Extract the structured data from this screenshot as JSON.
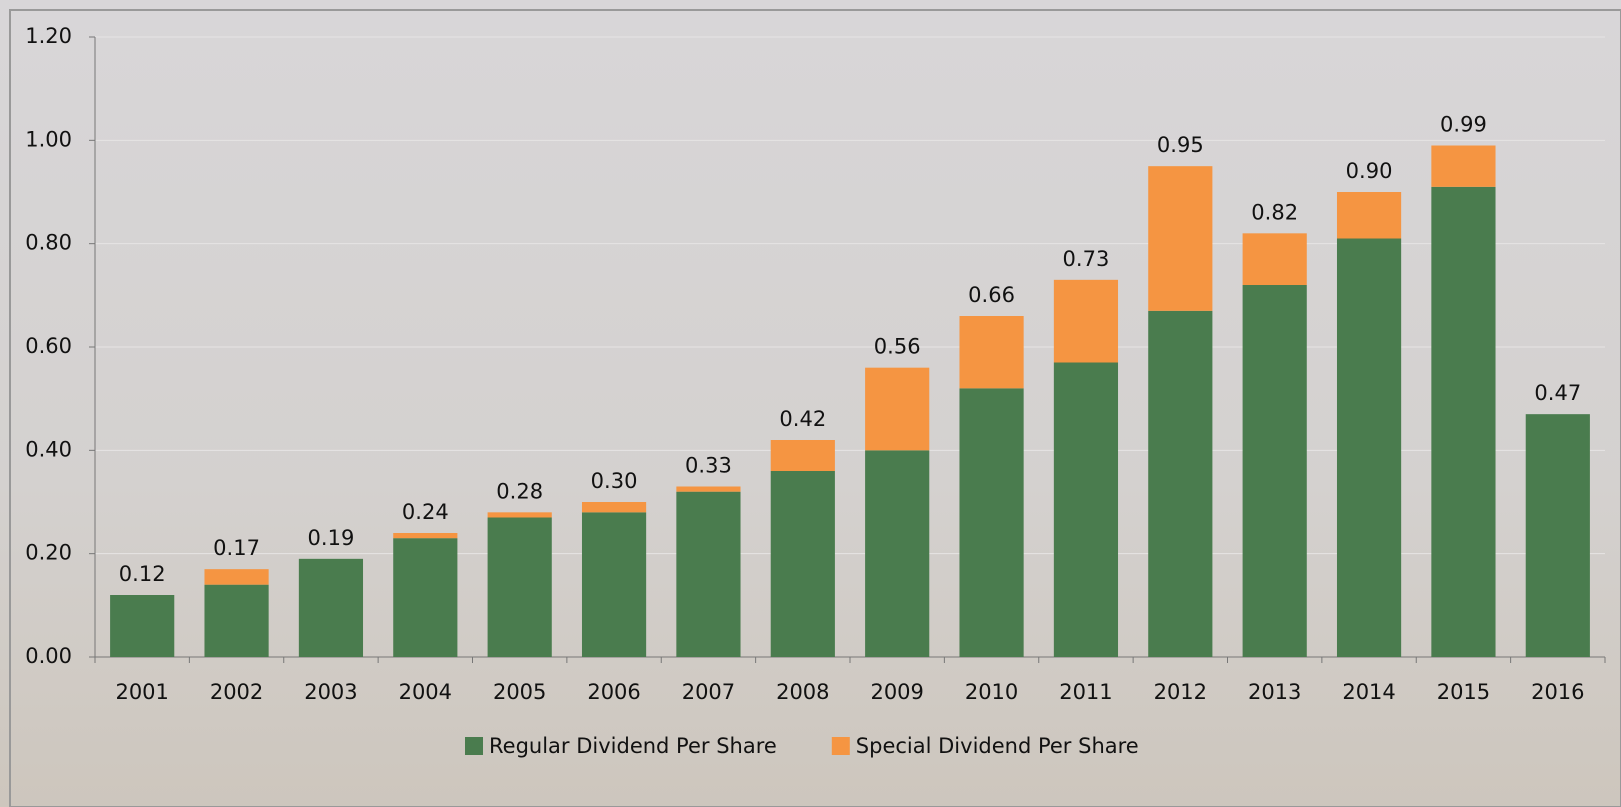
{
  "chart_data": {
    "type": "stacked-bar",
    "categories": [
      "2001",
      "2002",
      "2003",
      "2004",
      "2005",
      "2006",
      "2007",
      "2008",
      "2009",
      "2010",
      "2011",
      "2012",
      "2013",
      "2014",
      "2015",
      "2016"
    ],
    "series": [
      {
        "name": "Regular Dividend Per Share",
        "color": "#4a7c4e",
        "values": [
          0.12,
          0.14,
          0.19,
          0.23,
          0.27,
          0.28,
          0.32,
          0.36,
          0.4,
          0.52,
          0.57,
          0.67,
          0.72,
          0.81,
          0.91,
          0.47
        ]
      },
      {
        "name": "Special Dividend Per Share",
        "color": "#f59542",
        "values": [
          0,
          0.03,
          0,
          0.01,
          0.01,
          0.02,
          0.01,
          0.06,
          0.16,
          0.14,
          0.16,
          0.28,
          0.1,
          0.09,
          0.08,
          0
        ]
      }
    ],
    "total_labels": [
      "0.12",
      "0.17",
      "0.19",
      "0.24",
      "0.28",
      "0.30",
      "0.33",
      "0.42",
      "0.56",
      "0.66",
      "0.73",
      "0.95",
      "0.82",
      "0.90",
      "0.99",
      "0.47"
    ],
    "ylim": [
      0,
      1.2
    ],
    "yticks": [
      {
        "value": 0,
        "label": "0.00"
      },
      {
        "value": 0.2,
        "label": "0.20"
      },
      {
        "value": 0.4,
        "label": "0.40"
      },
      {
        "value": 0.6,
        "label": "0.60"
      },
      {
        "value": 0.8,
        "label": "0.80"
      },
      {
        "value": 1,
        "label": "1.00"
      },
      {
        "value": 1.2,
        "label": "1.20"
      }
    ],
    "grid": true,
    "legend": "bottom"
  }
}
